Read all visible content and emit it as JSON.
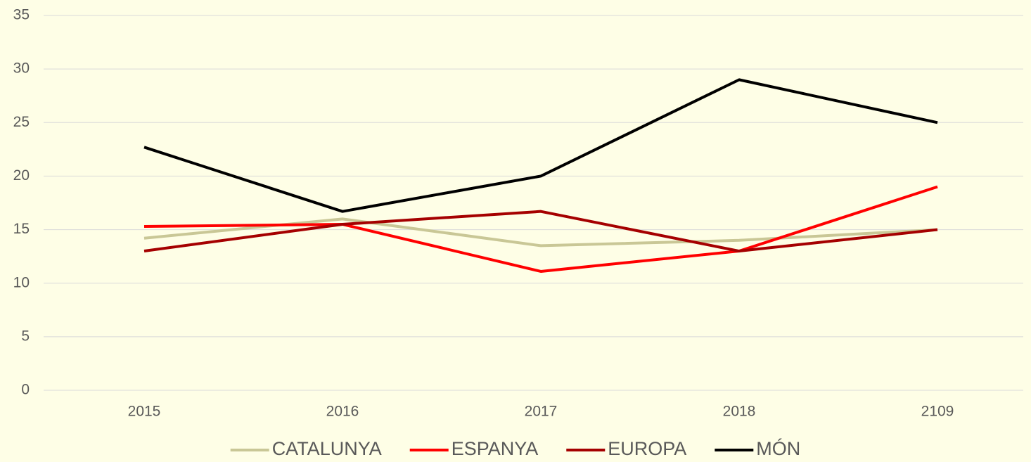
{
  "chart_data": {
    "type": "line",
    "categories": [
      "2015",
      "2016",
      "2017",
      "2018",
      "2109"
    ],
    "series": [
      {
        "name": "CATALUNYA",
        "color": "#c9c796",
        "values": [
          14.2,
          16.0,
          13.5,
          14.0,
          15.0
        ]
      },
      {
        "name": "ESPANYA",
        "color": "#ff0000",
        "values": [
          15.3,
          15.5,
          11.1,
          13.0,
          19.0
        ]
      },
      {
        "name": "EUROPA",
        "color": "#a50000",
        "values": [
          13.0,
          15.5,
          16.7,
          13.0,
          15.0
        ]
      },
      {
        "name": "MÓN",
        "color": "#000000",
        "values": [
          22.7,
          16.7,
          20.0,
          29.0,
          25.0
        ]
      }
    ],
    "ylim": [
      0,
      35
    ],
    "yticks": [
      0,
      5,
      10,
      15,
      20,
      25,
      30,
      35
    ],
    "grid": true,
    "legend": "bottom"
  }
}
